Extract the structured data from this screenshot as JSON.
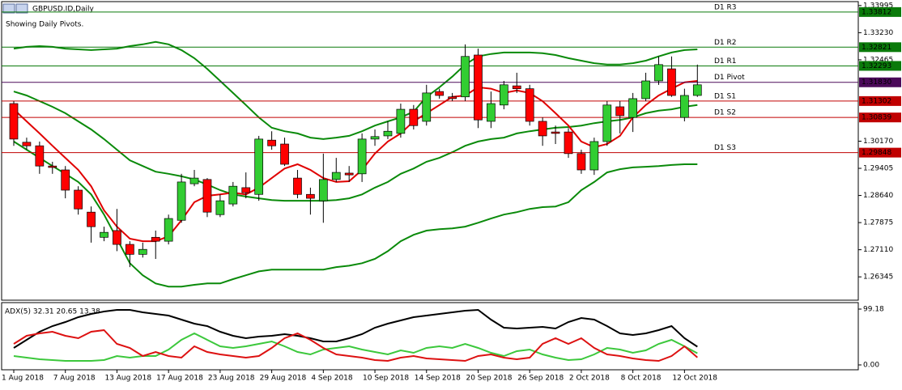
{
  "chart_data": [
    {
      "type": "candlestick",
      "title": "GBPUSD.ID,Daily",
      "subtitle": "Showing Daily Pivots.",
      "categories": [
        "1 Aug 2018",
        null,
        null,
        null,
        "7 Aug 2018",
        null,
        null,
        null,
        "13 Aug 2018",
        null,
        null,
        null,
        "17 Aug 2018",
        null,
        null,
        null,
        "23 Aug 2018",
        null,
        null,
        null,
        "29 Aug 2018",
        null,
        null,
        null,
        "4 Sep 2018",
        null,
        null,
        null,
        "10 Sep 2018",
        null,
        null,
        null,
        "14 Sep 2018",
        null,
        null,
        null,
        "20 Sep 2018",
        null,
        null,
        null,
        "26 Sep 2018",
        null,
        null,
        null,
        "2 Oct 2018",
        null,
        null,
        null,
        "8 Oct 2018",
        null,
        null,
        null,
        "12 Oct 2018",
        null
      ],
      "open": [
        1.3123,
        1.3014,
        1.3004,
        1.2947,
        1.2936,
        1.2879,
        1.2817,
        1.2746,
        1.2765,
        1.2726,
        1.2698,
        1.2746,
        1.2735,
        1.2794,
        1.2897,
        1.2909,
        1.281,
        1.284,
        1.2886,
        1.2867,
        1.302,
        1.3009,
        1.2913,
        1.2867,
        1.2849,
        1.2909,
        1.2927,
        1.2925,
        1.3023,
        1.3032,
        1.3039,
        1.3107,
        1.3073,
        1.3157,
        1.3142,
        1.3142,
        1.326,
        1.3073,
        1.3119,
        1.3173,
        1.3165,
        1.3073,
        1.3043,
        1.3043,
        1.2982,
        1.2936,
        1.3016,
        1.3114,
        1.3084,
        1.3137,
        1.3187,
        1.3221,
        1.3084,
        1.3146
      ],
      "high": [
        1.313,
        1.3027,
        1.3016,
        1.2959,
        1.2947,
        1.289,
        1.2833,
        1.2776,
        1.2826,
        1.2735,
        1.2731,
        1.2765,
        1.281,
        1.2925,
        1.2936,
        1.2913,
        1.2867,
        1.2902,
        1.2929,
        1.3032,
        1.3045,
        1.3027,
        1.2936,
        1.2886,
        1.2982,
        1.297,
        1.2947,
        1.3039,
        1.305,
        1.3073,
        1.3123,
        1.3119,
        1.3176,
        1.3165,
        1.3153,
        1.329,
        1.3278,
        1.3157,
        1.3187,
        1.321,
        1.3176,
        1.3084,
        1.3061,
        1.3054,
        1.2993,
        1.3027,
        1.313,
        1.313,
        1.3153,
        1.321,
        1.3256,
        1.3256,
        1.3165,
        1.3233
      ],
      "low": [
        1.3004,
        1.2993,
        1.2925,
        1.2925,
        1.2856,
        1.281,
        1.2731,
        1.2735,
        1.2707,
        1.2662,
        1.2689,
        1.2685,
        1.2726,
        1.2787,
        1.289,
        1.2803,
        1.2803,
        1.2833,
        1.2856,
        1.2849,
        1.2993,
        1.2947,
        1.2856,
        1.281,
        1.2787,
        1.2902,
        1.2902,
        1.2902,
        1.3004,
        1.3023,
        1.3027,
        1.305,
        1.3061,
        1.3137,
        1.313,
        1.313,
        1.3054,
        1.3054,
        1.3107,
        1.3153,
        1.3061,
        1.3004,
        1.3009,
        1.297,
        1.2925,
        1.2922,
        1.3004,
        1.3039,
        1.3043,
        1.313,
        1.3176,
        1.3142,
        1.3073,
        1.3142
      ],
      "close": [
        1.3023,
        1.3004,
        1.2947,
        1.2943,
        1.2879,
        1.2826,
        1.2776,
        1.276,
        1.2726,
        1.2698,
        1.2712,
        1.2735,
        1.2799,
        1.2902,
        1.2913,
        1.2817,
        1.2849,
        1.289,
        1.2872,
        1.3023,
        1.3004,
        1.2952,
        1.2867,
        1.2856,
        1.2909,
        1.2929,
        1.2922,
        1.3023,
        1.303,
        1.3045,
        1.3107,
        1.3061,
        1.3153,
        1.3146,
        1.3137,
        1.3256,
        1.3077,
        1.3123,
        1.3176,
        1.3165,
        1.3073,
        1.3032,
        1.3039,
        1.2982,
        1.2936,
        1.3016,
        1.3119,
        1.3089,
        1.3137,
        1.3187,
        1.3233,
        1.3146,
        1.3146,
        1.3176
      ],
      "up_color": "#32cd32",
      "down_color": "#ff0000",
      "lines": [
        {
          "color": "#0a8a0a",
          "values": [
            1.3278,
            1.3283,
            1.3285,
            1.3283,
            1.3278,
            1.3276,
            1.3274,
            1.3276,
            1.3278,
            1.3285,
            1.329,
            1.3297,
            1.329,
            1.3274,
            1.3251,
            1.3221,
            1.3187,
            1.3153,
            1.3119,
            1.3084,
            1.3055,
            1.3045,
            1.3039,
            1.3027,
            1.3023,
            1.3027,
            1.3032,
            1.3045,
            1.3061,
            1.3073,
            1.3084,
            1.31,
            1.3142,
            1.3169,
            1.3199,
            1.3233,
            1.3256,
            1.3263,
            1.3267,
            1.3267,
            1.3267,
            1.3265,
            1.326,
            1.3251,
            1.3244,
            1.3237,
            1.3233,
            1.3233,
            1.3237,
            1.3244,
            1.3256,
            1.3267,
            1.3274,
            1.3276
          ]
        },
        {
          "color": "#0a8a0a",
          "values": [
            1.3157,
            1.3146,
            1.313,
            1.3114,
            1.3096,
            1.3073,
            1.305,
            1.3023,
            1.2993,
            1.2963,
            1.2947,
            1.2931,
            1.2925,
            1.2918,
            1.2909,
            1.2895,
            1.2879,
            1.2867,
            1.2861,
            1.2856,
            1.2851,
            1.2849,
            1.2849,
            1.2849,
            1.2849,
            1.2851,
            1.2856,
            1.2867,
            1.2886,
            1.2902,
            1.2925,
            1.294,
            1.2959,
            1.297,
            1.2986,
            1.3004,
            1.3016,
            1.3023,
            1.3027,
            1.3039,
            1.3045,
            1.305,
            1.3055,
            1.3057,
            1.3061,
            1.3068,
            1.3073,
            1.3077,
            1.3084,
            1.3096,
            1.3103,
            1.3107,
            1.3114,
            1.3119
          ]
        },
        {
          "color": "#0a8a0a",
          "values": [
            1.3016,
            1.2993,
            1.297,
            1.2947,
            1.2925,
            1.2902,
            1.2867,
            1.281,
            1.2742,
            1.2673,
            1.2639,
            1.2616,
            1.2607,
            1.2607,
            1.2612,
            1.2616,
            1.2616,
            1.2628,
            1.2639,
            1.265,
            1.2655,
            1.2655,
            1.2655,
            1.2655,
            1.2655,
            1.2662,
            1.2666,
            1.2673,
            1.2685,
            1.2707,
            1.2735,
            1.2753,
            1.2765,
            1.2769,
            1.2771,
            1.2776,
            1.2787,
            1.2799,
            1.281,
            1.2817,
            1.2826,
            1.2831,
            1.2833,
            1.2845,
            1.2879,
            1.2902,
            1.2929,
            1.2938,
            1.2943,
            1.2945,
            1.2947,
            1.295,
            1.2952,
            1.2952
          ]
        },
        {
          "color": "#e00000",
          "values": [
            1.3107,
            1.3073,
            1.3039,
            1.3004,
            1.297,
            1.2936,
            1.289,
            1.2822,
            1.2776,
            1.2742,
            1.2735,
            1.2735,
            1.2749,
            1.2794,
            1.2845,
            1.2863,
            1.2867,
            1.2872,
            1.2867,
            1.2886,
            1.2913,
            1.294,
            1.2952,
            1.2936,
            1.2913,
            1.2902,
            1.2904,
            1.2936,
            1.2982,
            1.3016,
            1.3039,
            1.3073,
            1.3096,
            1.3119,
            1.3142,
            1.3146,
            1.3169,
            1.3165,
            1.3153,
            1.316,
            1.3153,
            1.313,
            1.3096,
            1.3061,
            1.3016,
            1.3,
            1.3009,
            1.3032,
            1.3084,
            1.3119,
            1.3146,
            1.3165,
            1.3183,
            1.3187
          ]
        }
      ],
      "levels": [
        {
          "name": "D1 R3",
          "value": 1.33812,
          "color": "#0a7a0a"
        },
        {
          "name": "D1 R2",
          "value": 1.32821,
          "color": "#0a7a0a"
        },
        {
          "name": "D1 R1",
          "value": 1.32293,
          "color": "#0a7a0a"
        },
        {
          "name": "D1 Pivot",
          "value": 1.3183,
          "value_label": "1.31830",
          "color": "#4b0a5a"
        },
        {
          "name": "D1 S1",
          "value": 1.31302,
          "color": "#c00000"
        },
        {
          "name": "D1 S2",
          "value": 1.30839,
          "color": "#c00000"
        },
        {
          "name": "D1 S3",
          "value": 1.29848,
          "color": "#c00000"
        }
      ],
      "ylim": [
        1.2571,
        1.3406
      ],
      "yticks": [
        1.33995,
        {
          "value": 1.3323,
          "label": "1.33230"
        },
        1.32465,
        {
          "value": 1.3017,
          "label": "1.30170"
        },
        1.29405,
        {
          "value": 1.2864,
          "label": "1.28640"
        },
        1.27875,
        {
          "value": 1.2711,
          "label": "1.27110"
        },
        1.26345
      ]
    },
    {
      "type": "line",
      "title": "ADX(5) 32.31 20.65 13.38",
      "series": [
        {
          "color": "#000000",
          "values": [
            30.2,
            44.6,
            58.9,
            69.0,
            76.2,
            84.8,
            90.5,
            94.9,
            97.7,
            97.7,
            93.4,
            90.6,
            87.7,
            80.5,
            73.3,
            69.0,
            58.9,
            51.7,
            47.4,
            50.3,
            51.7,
            54.6,
            51.7,
            47.4,
            41.7,
            41.7,
            47.4,
            54.6,
            66.1,
            73.3,
            79.1,
            84.8,
            87.7,
            90.6,
            93.4,
            96.3,
            97.7,
            80.5,
            66.1,
            64.7,
            66.1,
            67.6,
            64.7,
            76.2,
            83.4,
            80.5,
            69.0,
            56.1,
            53.2,
            56.1,
            61.8,
            69.0,
            47.4,
            32.31
          ]
        },
        {
          "color": "#3cc83c",
          "values": [
            15.8,
            12.9,
            10.1,
            8.6,
            7.2,
            7.2,
            7.2,
            8.6,
            15.8,
            12.9,
            15.8,
            15.8,
            27.3,
            44.6,
            56.1,
            44.6,
            33.1,
            30.2,
            33.1,
            37.4,
            41.7,
            33.1,
            23.0,
            18.7,
            27.3,
            30.2,
            33.1,
            27.3,
            23.0,
            18.7,
            25.9,
            21.6,
            30.2,
            33.1,
            30.2,
            37.4,
            30.2,
            21.6,
            15.8,
            24.4,
            27.3,
            18.7,
            12.9,
            8.6,
            10.1,
            18.7,
            30.2,
            27.3,
            21.6,
            25.9,
            37.4,
            44.6,
            33.1,
            20.65
          ]
        },
        {
          "color": "#dd1111",
          "values": [
            37.4,
            51.7,
            56.1,
            58.9,
            51.7,
            47.4,
            58.9,
            61.8,
            37.4,
            30.2,
            15.8,
            23.0,
            15.8,
            12.9,
            33.1,
            23.0,
            18.7,
            15.8,
            12.9,
            15.8,
            30.2,
            47.4,
            56.1,
            44.6,
            30.2,
            18.7,
            15.8,
            12.9,
            8.6,
            7.2,
            12.9,
            15.8,
            11.5,
            10.1,
            8.6,
            7.2,
            15.8,
            18.7,
            12.9,
            10.1,
            12.9,
            37.4,
            47.4,
            37.4,
            47.4,
            30.2,
            18.7,
            15.8,
            11.5,
            8.6,
            7.2,
            15.8,
            33.1,
            13.38
          ]
        }
      ],
      "ylim": [
        -5.75,
        109.24
      ],
      "yticks": [
        99.18,
        {
          "value": 0,
          "label": "0.00"
        }
      ]
    }
  ]
}
